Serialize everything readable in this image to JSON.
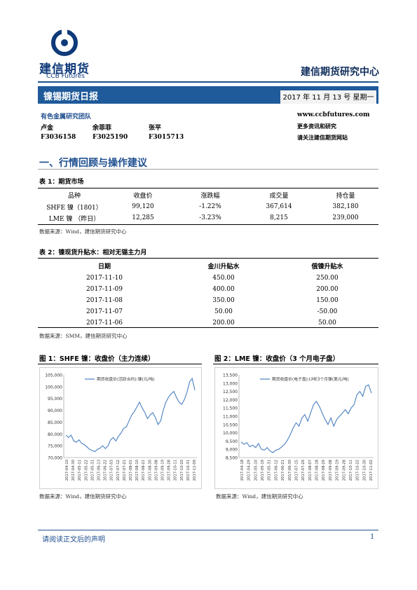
{
  "header": {
    "logo_cn": "建信期货",
    "logo_en": "CCB Futures",
    "center_name": "建信期货研究中心"
  },
  "banner": {
    "title": "镍锡期货日报",
    "date": "2017 年 11 月 13 号  星期一"
  },
  "team": {
    "name": "有色金属研究团队",
    "analysts": [
      {
        "name": "卢金",
        "id": "F3036158"
      },
      {
        "name": "余菲菲",
        "id": "F3025190"
      },
      {
        "name": "张平",
        "id": "F3015713"
      }
    ],
    "website": "www.ccbfutures.com",
    "more": "更多资讯和研究",
    "follow": "请关注建信期货网站"
  },
  "section1": {
    "title": "一、行情回顾与操作建议"
  },
  "table1": {
    "title": "表 1：期货市场",
    "headers": [
      "品种",
      "收盘价",
      "涨跌幅",
      "成交量",
      "持仓量"
    ],
    "rows": [
      [
        "SHFE 镍（1801）",
        "99,120",
        "-1.22%",
        "367,614",
        "382,180"
      ],
      [
        "LME 镍 （昨日）",
        "12,285",
        "-3.23%",
        "8,215",
        "239,000"
      ]
    ],
    "source": "数据来源：Wind，建信期货研究中心"
  },
  "table2": {
    "title": "表 2：镍现货升贴水：相对无锡主力月",
    "headers": [
      "日期",
      "金川升贴水",
      "俄镍升贴水"
    ],
    "rows": [
      [
        "2017-11-10",
        "450.00",
        "250.00"
      ],
      [
        "2017-11-09",
        "400.00",
        "200.00"
      ],
      [
        "2017-11-08",
        "350.00",
        "150.00"
      ],
      [
        "2017-11-07",
        "50.00",
        "-50.00"
      ],
      [
        "2017-11-06",
        "200.00",
        "50.00"
      ]
    ],
    "source": "数据来源：SMM，建信期货研究中心"
  },
  "chart_data": [
    {
      "type": "line",
      "title": "图 1：SHFE 镍：收盘价（主力连续）",
      "legend": "期货收盘价(活跃合约):镍(元/吨)",
      "xlabel": "",
      "ylabel": "",
      "ylim": [
        70000,
        105000
      ],
      "yticks": [
        "105,000",
        "100,000",
        "95,000",
        "90,000",
        "85,000",
        "80,000",
        "75,000",
        "70,000"
      ],
      "xticks": [
        "2017-04-10",
        "2017-04-30",
        "2017-05-11",
        "2017-05-22",
        "2017-05-31",
        "2017-06-13",
        "2017-06-22",
        "2017-07-03",
        "2017-07-12",
        "2017-07-21",
        "2017-08-01",
        "2017-08-10",
        "2017-08-21",
        "2017-08-30",
        "2017-09-08",
        "2017-09-19",
        "2017-09-28",
        "2017-10-11",
        "2017-10-20",
        "2017-10-31",
        "2017-11-09"
      ],
      "series": [
        {
          "values": [
            79500,
            78500,
            79500,
            77000,
            76500,
            77500,
            76000,
            75500,
            74500,
            73500,
            73000,
            72500,
            73500,
            74000,
            75000,
            73800,
            75000,
            77500,
            78500,
            77000,
            79000,
            80500,
            82500,
            83000,
            85500,
            88000,
            89500,
            91500,
            93500,
            91000,
            89000,
            86500,
            88000,
            89000,
            87000,
            84000,
            85500,
            90000,
            93500,
            95500,
            97000,
            98000,
            95500,
            93500,
            92500,
            94500,
            97500,
            102000,
            103500,
            98500
          ]
        }
      ]
    },
    {
      "type": "line",
      "title": "图 2：LME 镍：收盘价（3 个月电子盘）",
      "legend": "期货收盘价(电子盘):LME3个月镍(美元/吨)",
      "xlabel": "",
      "ylabel": "",
      "ylim": [
        8500,
        13500
      ],
      "yticks": [
        "13,500",
        "13,000",
        "12,500",
        "12,000",
        "11,500",
        "11,000",
        "10,500",
        "10,000",
        "9,500",
        "9,000",
        "8,500"
      ],
      "xticks": [
        "2017-04-18",
        "2017-04-29",
        "2017-05-10",
        "2017-05-19",
        "2017-05-31",
        "2017-06-12",
        "2017-06-21",
        "2017-06-30",
        "2017-07-15",
        "2017-07-26",
        "2017-08-07",
        "2017-08-18",
        "2017-08-29",
        "2017-09-08",
        "2017-09-19",
        "2017-09-28",
        "2017-10-11",
        "2017-10-22",
        "2017-10-30",
        "2017-11-02"
      ],
      "series": [
        {
          "values": [
            9450,
            9300,
            9400,
            9150,
            9250,
            9100,
            9350,
            9000,
            8950,
            9100,
            8900,
            8800,
            8950,
            9000,
            9150,
            9300,
            9550,
            9900,
            10300,
            10600,
            10400,
            10900,
            11100,
            10700,
            11200,
            11700,
            11900,
            11600,
            11200,
            10800,
            10500,
            10900,
            10400,
            10800,
            11000,
            11200,
            11400,
            11150,
            11500,
            11700,
            12300,
            12500,
            12200,
            12800,
            12900,
            12400
          ]
        }
      ]
    }
  ],
  "fig_source_1": "数据来源：Wind，建信期货研究中心",
  "fig_source_2": "数据来源：Wind，建信期货研究中心",
  "footer": {
    "text": "请阅读正文后的声明",
    "page": "1"
  },
  "colors": {
    "brand": "#1f5a9a",
    "line": "#4a7fc1"
  }
}
